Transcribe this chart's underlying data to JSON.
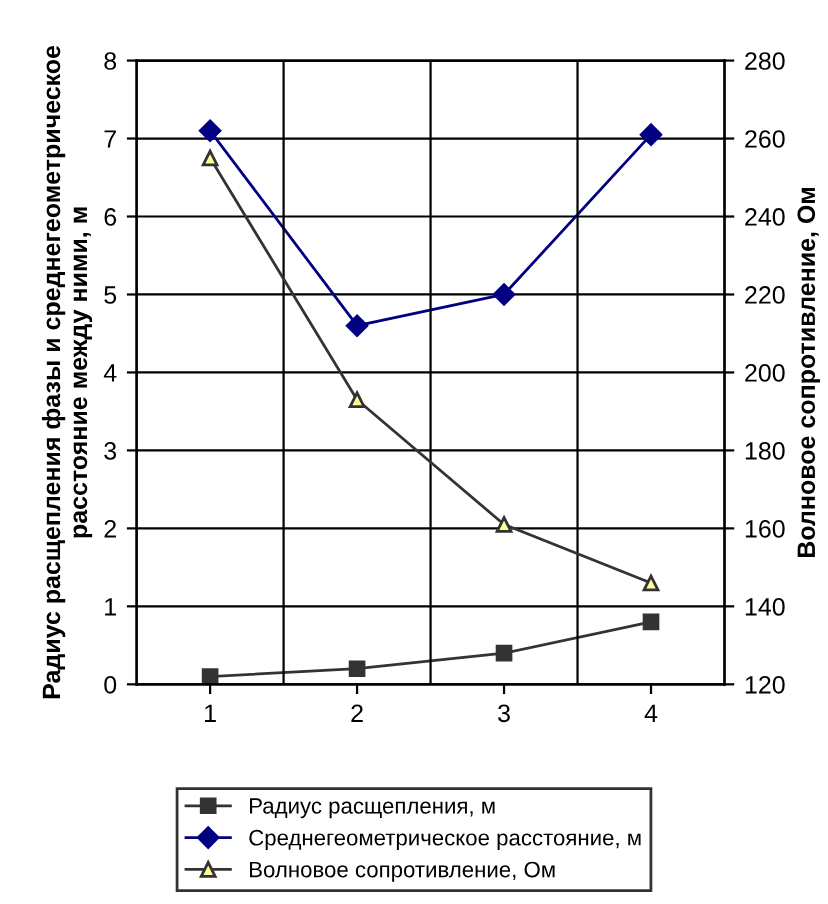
{
  "chart_data": {
    "type": "line",
    "categories": [
      "1",
      "2",
      "3",
      "4"
    ],
    "ylabel": "Радиус расщепления фазы и среднегеометрическое расстояние между ними, м",
    "y2label": "Волновое сопротивление, Ом",
    "ylim": [
      0,
      8
    ],
    "yticks": [
      0,
      1,
      2,
      3,
      4,
      5,
      6,
      7,
      8
    ],
    "y2lim": [
      120,
      280
    ],
    "y2ticks": [
      120,
      140,
      160,
      180,
      200,
      220,
      240,
      260,
      280
    ],
    "grid": true,
    "legend": "bottom",
    "series": [
      {
        "name": "Радиус расщепления, м",
        "color": "#333333",
        "marker": "square",
        "values": [
          0.1,
          0.2,
          0.4,
          0.8
        ]
      },
      {
        "name": "Среднегеометрическое расстояние, м",
        "color": "#000080",
        "marker": "diamond",
        "values": [
          7.1,
          4.6,
          5.0,
          7.05
        ]
      },
      {
        "name": "Волновое сопротивление, Ом",
        "color": "#333333",
        "marker": "triangle",
        "axis": "y2",
        "values": [
          255,
          193,
          161,
          146
        ]
      }
    ]
  }
}
